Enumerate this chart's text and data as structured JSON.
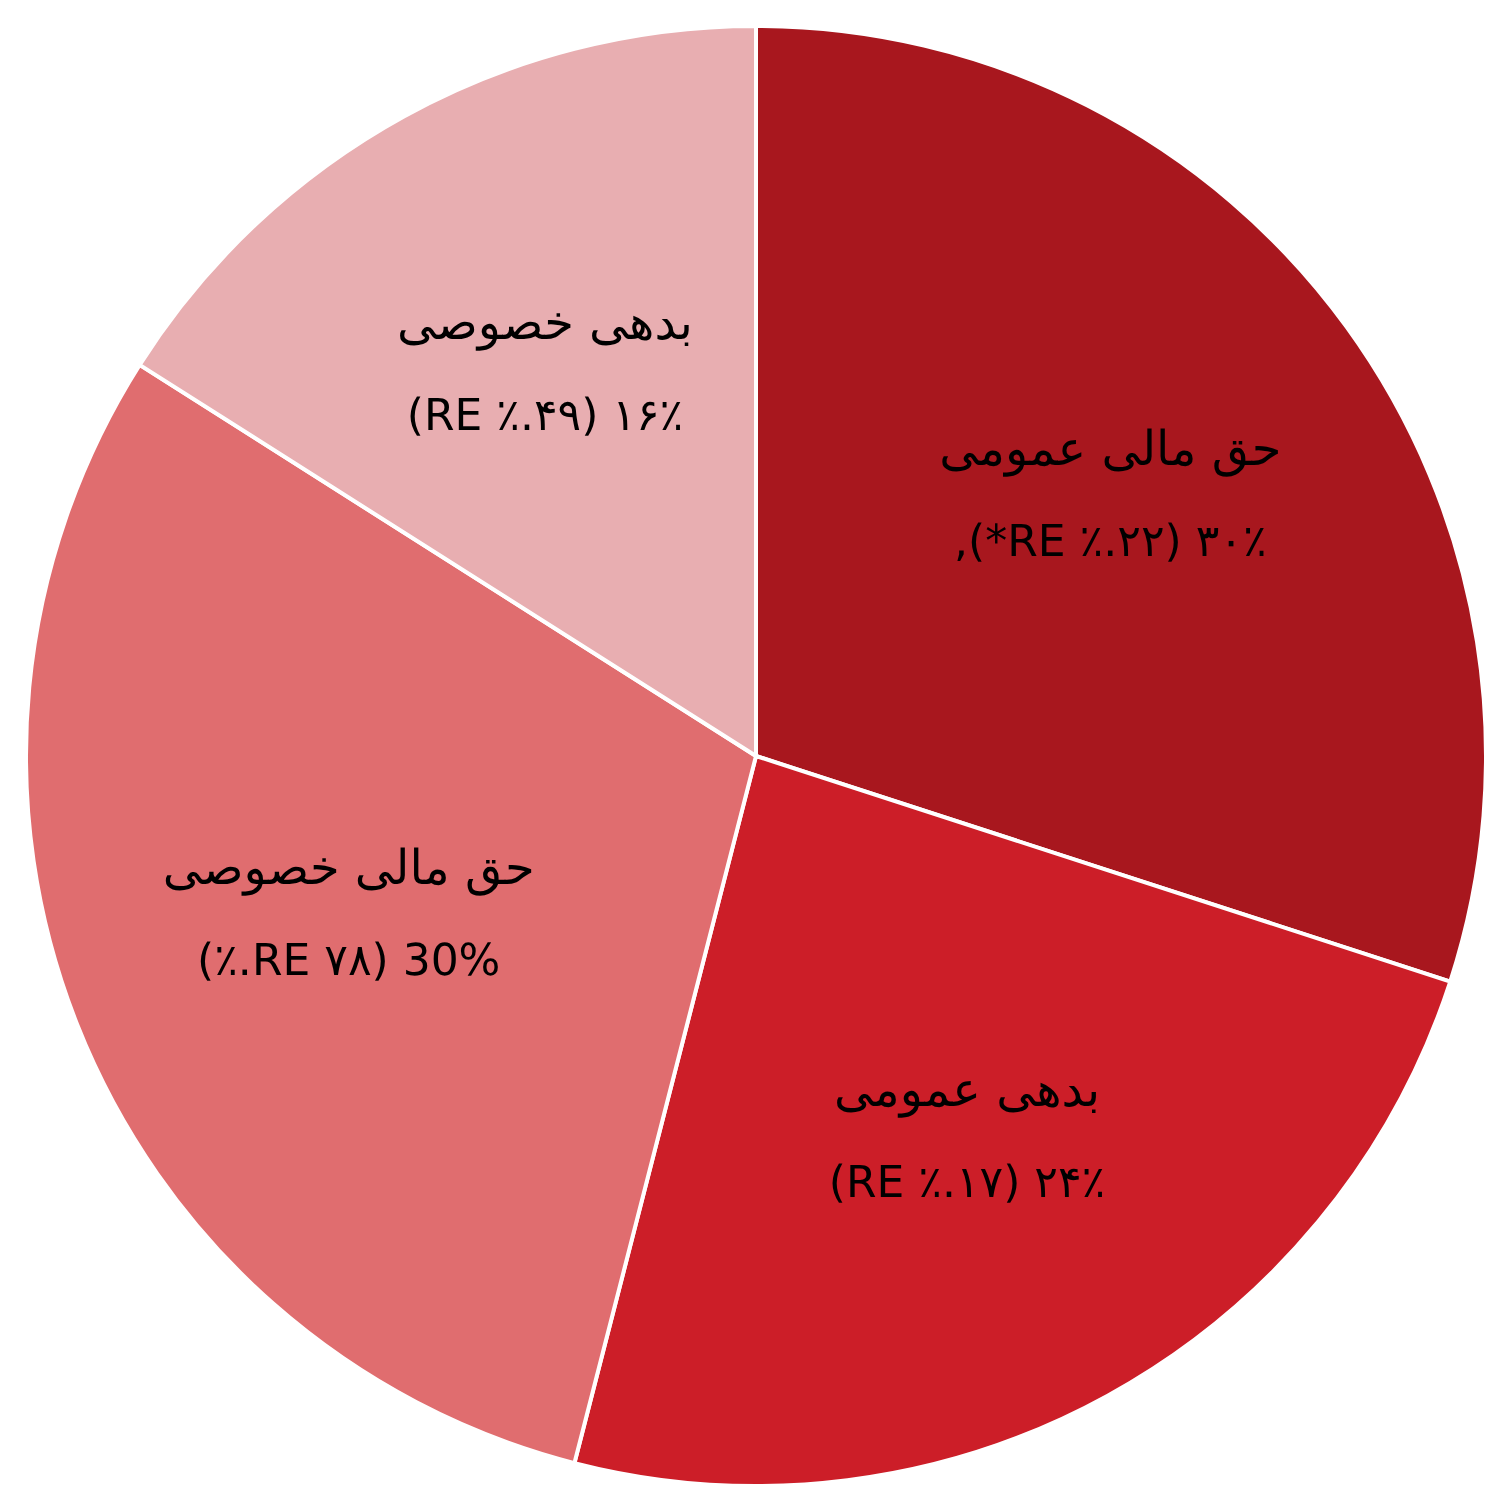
{
  "chart_data": {
    "type": "pie",
    "categories": [
      "حق مالی عمومی",
      "بدهی عمومی",
      "حق مالی خصوصی",
      "بدهی خصوصی"
    ],
    "values": [
      30,
      24,
      30,
      16
    ],
    "value_labels": [
      "۳۰٪ (۲۲.٪ RE*),",
      "۲۴٪ (۱۷.٪ RE)",
      "30% (RE ۷۸.٪)",
      "۱۶٪ (۴۹.٪ RE)"
    ],
    "colors": [
      "#a8171e",
      "#cc1e28",
      "#e06d6f",
      "#e8aeb1"
    ],
    "legend": false
  }
}
